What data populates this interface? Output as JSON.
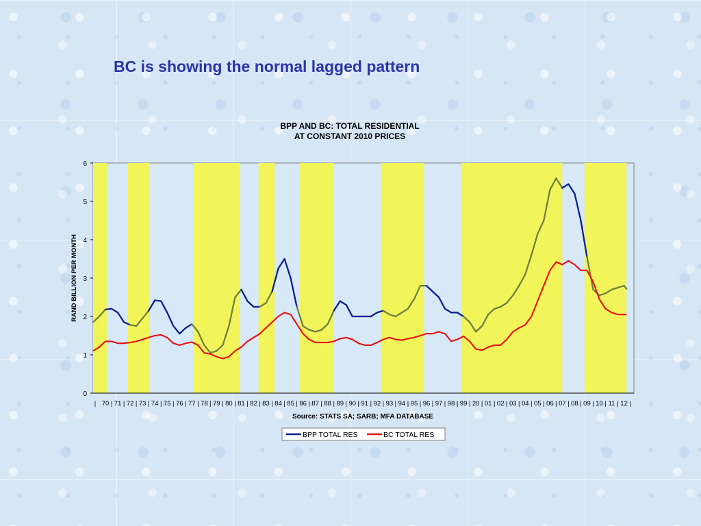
{
  "slide": {
    "title": "BC is showing the normal lagged pattern"
  },
  "chart_data": {
    "type": "line",
    "title": "BPP AND BC: TOTAL RESIDENTIAL",
    "subtitle": "AT CONSTANT 2010 PRICES",
    "ylabel": "RAND BILLION PER MONTH",
    "xlabel": "Source: STATS SA; SARB; MFA DATABASE",
    "ylim": [
      0,
      6
    ],
    "xlim": [
      1969.0,
      2012.8
    ],
    "yticks": [
      0,
      1,
      2,
      3,
      4,
      5,
      6
    ],
    "xtick_labels": [
      "70",
      "71",
      "72",
      "73",
      "74",
      "75",
      "76",
      "77",
      "78",
      "79",
      "80",
      "81",
      "82",
      "83",
      "84",
      "85",
      "86",
      "87",
      "88",
      "89",
      "90",
      "91",
      "92",
      "93",
      "94",
      "95",
      "96",
      "97",
      "98",
      "99",
      "20",
      "01",
      "02",
      "03",
      "04",
      "05",
      "06",
      "07",
      "08",
      "09",
      "10",
      "11",
      "12"
    ],
    "grid": false,
    "legend_position": "bottom",
    "shaded_periods": [
      [
        1969.0,
        1970.1
      ],
      [
        1971.8,
        1973.6
      ],
      [
        1977.1,
        1980.9
      ],
      [
        1982.4,
        1983.7
      ],
      [
        1985.7,
        1988.5
      ],
      [
        1992.3,
        1995.8
      ],
      [
        1998.8,
        2007.0
      ],
      [
        2008.8,
        2012.2
      ]
    ],
    "colors": {
      "shading": "#f2f55a",
      "bpp_upswing": "#6f7f3f",
      "bpp_downswing": "#0a1f8f",
      "bc": "#e81010",
      "plot_bg": "#d7e8f7"
    },
    "series": [
      {
        "name": "BPP TOTAL RES",
        "x": [
          1969.0,
          1969.5,
          1970.0,
          1970.5,
          1971.0,
          1971.5,
          1972.0,
          1972.5,
          1973.0,
          1973.5,
          1974.0,
          1974.5,
          1975.0,
          1975.5,
          1976.0,
          1976.5,
          1977.0,
          1977.5,
          1978.0,
          1978.5,
          1979.0,
          1979.5,
          1980.0,
          1980.5,
          1981.0,
          1981.5,
          1982.0,
          1982.5,
          1983.0,
          1983.5,
          1984.0,
          1984.5,
          1985.0,
          1985.5,
          1986.0,
          1986.5,
          1987.0,
          1987.5,
          1988.0,
          1988.5,
          1989.0,
          1989.5,
          1990.0,
          1990.5,
          1991.0,
          1991.5,
          1992.0,
          1992.5,
          1993.0,
          1993.5,
          1994.0,
          1994.5,
          1995.0,
          1995.5,
          1996.0,
          1996.5,
          1997.0,
          1997.5,
          1998.0,
          1998.5,
          1999.0,
          1999.5,
          2000.0,
          2000.5,
          2001.0,
          2001.5,
          2002.0,
          2002.5,
          2003.0,
          2003.5,
          2004.0,
          2004.5,
          2005.0,
          2005.5,
          2006.0,
          2006.5,
          2007.0,
          2007.5,
          2008.0,
          2008.5,
          2009.0,
          2009.5,
          2010.0,
          2010.5,
          2011.0,
          2011.5,
          2012.0,
          2012.2
        ],
        "values": [
          1.85,
          2.0,
          2.18,
          2.2,
          2.1,
          1.85,
          1.78,
          1.75,
          1.95,
          2.15,
          2.42,
          2.4,
          2.1,
          1.75,
          1.55,
          1.7,
          1.8,
          1.6,
          1.25,
          1.05,
          1.1,
          1.25,
          1.75,
          2.5,
          2.7,
          2.4,
          2.25,
          2.25,
          2.35,
          2.65,
          3.25,
          3.5,
          3.0,
          2.25,
          1.75,
          1.65,
          1.6,
          1.65,
          1.8,
          2.15,
          2.4,
          2.3,
          2.0,
          2.0,
          2.0,
          2.0,
          2.1,
          2.15,
          2.05,
          2.0,
          2.1,
          2.2,
          2.45,
          2.8,
          2.8,
          2.65,
          2.5,
          2.2,
          2.1,
          2.1,
          2.0,
          1.85,
          1.6,
          1.75,
          2.05,
          2.2,
          2.25,
          2.35,
          2.55,
          2.8,
          3.1,
          3.6,
          4.15,
          4.5,
          5.3,
          5.6,
          5.35,
          5.45,
          5.2,
          4.5,
          3.55,
          2.7,
          2.55,
          2.6,
          2.7,
          2.75,
          2.8,
          2.72
        ]
      },
      {
        "name": "BC TOTAL RES",
        "x": [
          1969.0,
          1969.5,
          1970.0,
          1970.5,
          1971.0,
          1971.5,
          1972.0,
          1972.5,
          1973.0,
          1973.5,
          1974.0,
          1974.5,
          1975.0,
          1975.5,
          1976.0,
          1976.5,
          1977.0,
          1977.5,
          1978.0,
          1978.5,
          1979.0,
          1979.5,
          1980.0,
          1980.5,
          1981.0,
          1981.5,
          1982.0,
          1982.5,
          1983.0,
          1983.5,
          1984.0,
          1984.5,
          1985.0,
          1985.5,
          1986.0,
          1986.5,
          1987.0,
          1987.5,
          1988.0,
          1988.5,
          1989.0,
          1989.5,
          1990.0,
          1990.5,
          1991.0,
          1991.5,
          1992.0,
          1992.5,
          1993.0,
          1993.5,
          1994.0,
          1994.5,
          1995.0,
          1995.5,
          1996.0,
          1996.5,
          1997.0,
          1997.5,
          1998.0,
          1998.5,
          1999.0,
          1999.5,
          2000.0,
          2000.5,
          2001.0,
          2001.5,
          2002.0,
          2002.5,
          2003.0,
          2003.5,
          2004.0,
          2004.5,
          2005.0,
          2005.5,
          2006.0,
          2006.5,
          2007.0,
          2007.5,
          2008.0,
          2008.5,
          2009.0,
          2009.5,
          2010.0,
          2010.5,
          2011.0,
          2011.5,
          2012.0,
          2012.2
        ],
        "values": [
          1.1,
          1.2,
          1.35,
          1.35,
          1.3,
          1.3,
          1.32,
          1.35,
          1.4,
          1.45,
          1.5,
          1.52,
          1.45,
          1.3,
          1.25,
          1.3,
          1.33,
          1.25,
          1.05,
          1.02,
          0.95,
          0.9,
          0.95,
          1.1,
          1.2,
          1.35,
          1.45,
          1.55,
          1.7,
          1.85,
          2.0,
          2.1,
          2.05,
          1.8,
          1.55,
          1.4,
          1.32,
          1.32,
          1.32,
          1.35,
          1.42,
          1.45,
          1.4,
          1.3,
          1.25,
          1.25,
          1.32,
          1.4,
          1.45,
          1.4,
          1.38,
          1.42,
          1.45,
          1.5,
          1.55,
          1.55,
          1.6,
          1.55,
          1.35,
          1.4,
          1.48,
          1.35,
          1.15,
          1.12,
          1.2,
          1.25,
          1.25,
          1.4,
          1.6,
          1.7,
          1.78,
          2.0,
          2.4,
          2.8,
          3.2,
          3.42,
          3.35,
          3.45,
          3.35,
          3.2,
          3.2,
          2.9,
          2.45,
          2.2,
          2.1,
          2.05,
          2.05,
          2.05
        ]
      }
    ]
  },
  "legend": {
    "items": [
      "BPP TOTAL RES",
      "BC TOTAL RES"
    ]
  }
}
